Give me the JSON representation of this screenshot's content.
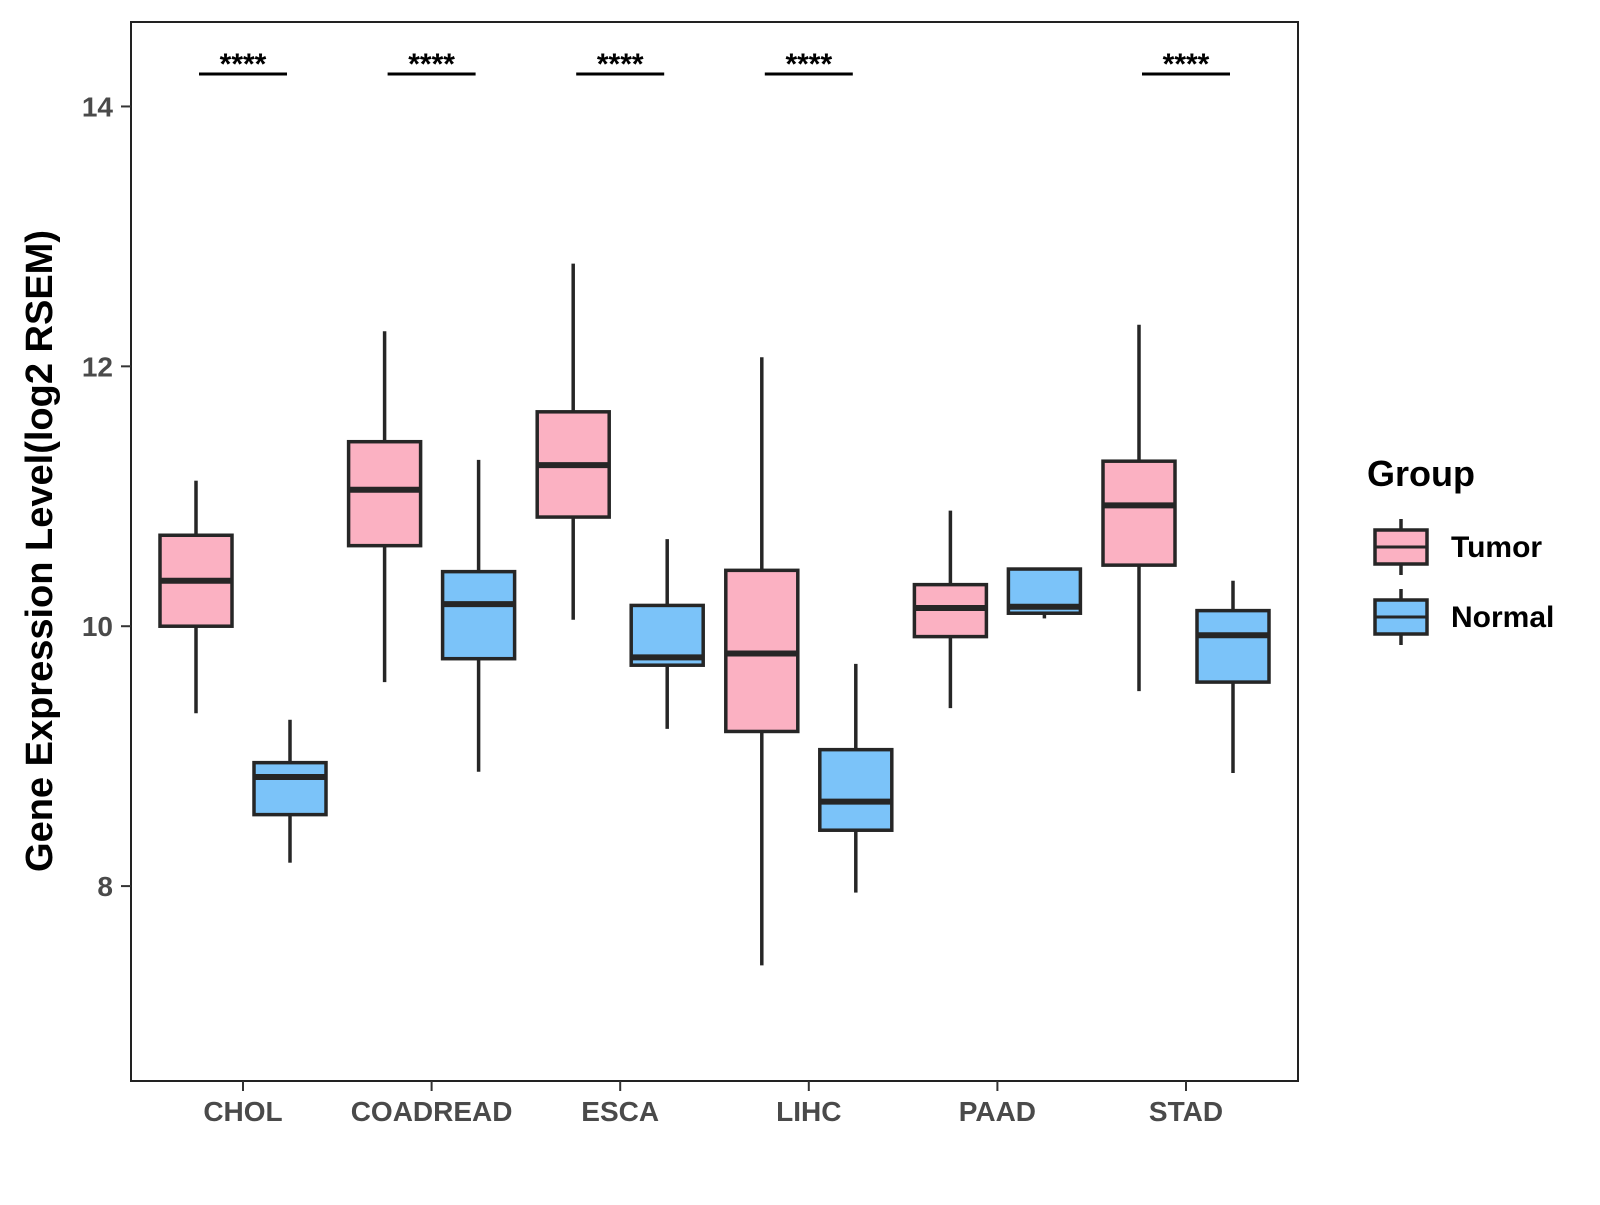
{
  "chart_data": {
    "type": "boxplot",
    "title": "",
    "xlabel": "",
    "ylabel": "Gene Expression Level(log2 RSEM)",
    "ylim": [
      6.5,
      14.65
    ],
    "yticks": [
      8,
      10,
      12,
      14
    ],
    "ytick_labels": [
      "8",
      "10",
      "12",
      "14"
    ],
    "categories": [
      "CHOL",
      "COADREAD",
      "ESCA",
      "LIHC",
      "PAAD",
      "STAD"
    ],
    "legend": {
      "title": "Group",
      "position": "right",
      "entries": [
        "Tumor",
        "Normal"
      ]
    },
    "series": [
      {
        "name": "Tumor",
        "color": "#FBB1C2",
        "boxes": [
          {
            "whisker_low": 9.33,
            "q1": 10.0,
            "median": 10.35,
            "q3": 10.7,
            "whisker_high": 11.12
          },
          {
            "whisker_low": 9.57,
            "q1": 10.62,
            "median": 11.05,
            "q3": 11.42,
            "whisker_high": 12.27
          },
          {
            "whisker_low": 10.05,
            "q1": 10.84,
            "median": 11.24,
            "q3": 11.65,
            "whisker_high": 12.79
          },
          {
            "whisker_low": 7.39,
            "q1": 9.19,
            "median": 9.79,
            "q3": 10.43,
            "whisker_high": 12.07
          },
          {
            "whisker_low": 9.37,
            "q1": 9.92,
            "median": 10.14,
            "q3": 10.32,
            "whisker_high": 10.89
          },
          {
            "whisker_low": 9.5,
            "q1": 10.47,
            "median": 10.93,
            "q3": 11.27,
            "whisker_high": 12.32
          }
        ]
      },
      {
        "name": "Normal",
        "color": "#7BC3F9",
        "boxes": [
          {
            "whisker_low": 8.18,
            "q1": 8.55,
            "median": 8.84,
            "q3": 8.95,
            "whisker_high": 9.28
          },
          {
            "whisker_low": 8.88,
            "q1": 9.75,
            "median": 10.17,
            "q3": 10.42,
            "whisker_high": 11.28
          },
          {
            "whisker_low": 9.21,
            "q1": 9.7,
            "median": 9.76,
            "q3": 10.16,
            "whisker_high": 10.67
          },
          {
            "whisker_low": 7.95,
            "q1": 8.43,
            "median": 8.65,
            "q3": 9.05,
            "whisker_high": 9.71
          },
          {
            "whisker_low": 10.06,
            "q1": 10.1,
            "median": 10.15,
            "q3": 10.44,
            "whisker_high": 10.44
          },
          {
            "whisker_low": 8.87,
            "q1": 9.57,
            "median": 9.93,
            "q3": 10.12,
            "whisker_high": 10.35
          }
        ]
      }
    ],
    "significance": [
      {
        "category": "CHOL",
        "label": "****"
      },
      {
        "category": "COADREAD",
        "label": "****"
      },
      {
        "category": "ESCA",
        "label": "****"
      },
      {
        "category": "LIHC",
        "label": "****"
      },
      {
        "category": "PAAD",
        "label": ""
      },
      {
        "category": "STAD",
        "label": "****"
      }
    ]
  }
}
